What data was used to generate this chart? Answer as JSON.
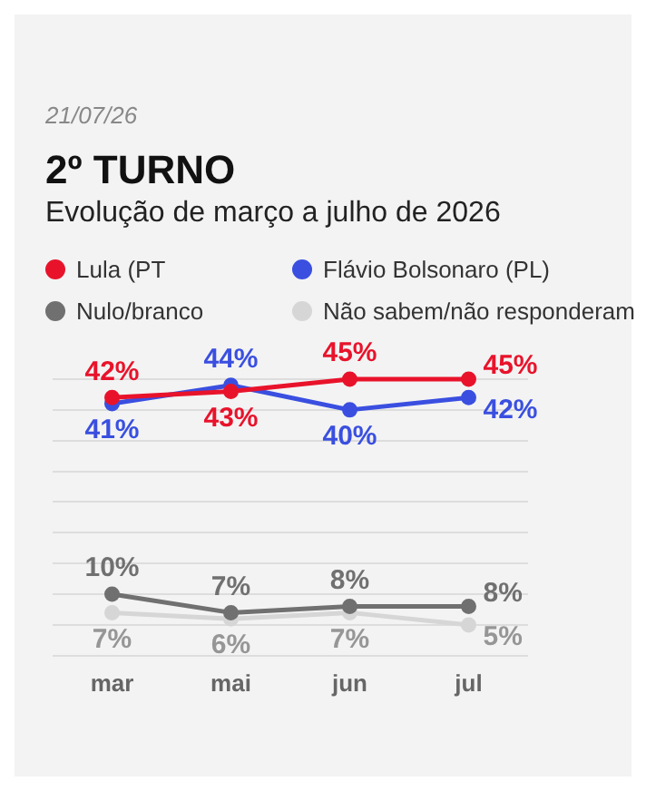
{
  "chart_data": {
    "type": "line",
    "title": "2º TURNO",
    "subtitle": "Evolução de março a julho de 2026",
    "annotations": [
      "21/07/26"
    ],
    "categories": [
      "mar",
      "mai",
      "jun",
      "jul"
    ],
    "series": [
      {
        "name": "Lula (PT",
        "color": "#e8132b",
        "values": [
          42,
          43,
          45,
          45
        ],
        "value_labels": [
          "42%",
          "43%",
          "45%",
          "45%"
        ]
      },
      {
        "name": "Flávio Bolsonaro (PL)",
        "color": "#3a4fe0",
        "values": [
          41,
          44,
          40,
          42
        ],
        "value_labels": [
          "41%",
          "44%",
          "40%",
          "42%"
        ]
      },
      {
        "name": "Nulo/branco",
        "color": "#707070",
        "values": [
          10,
          7,
          8,
          8
        ],
        "value_labels": [
          "10%",
          "7%",
          "8%",
          "8%"
        ]
      },
      {
        "name": "Não sabem/não responderam",
        "color": "#d6d6d6",
        "values": [
          7,
          6,
          7,
          5
        ],
        "value_labels": [
          "7%",
          "6%",
          "7%",
          "5%"
        ]
      }
    ],
    "relative": false,
    "tick_labels": "x",
    "grid": "y",
    "legend": "top",
    "marker": "circle",
    "line_style": "solid"
  }
}
